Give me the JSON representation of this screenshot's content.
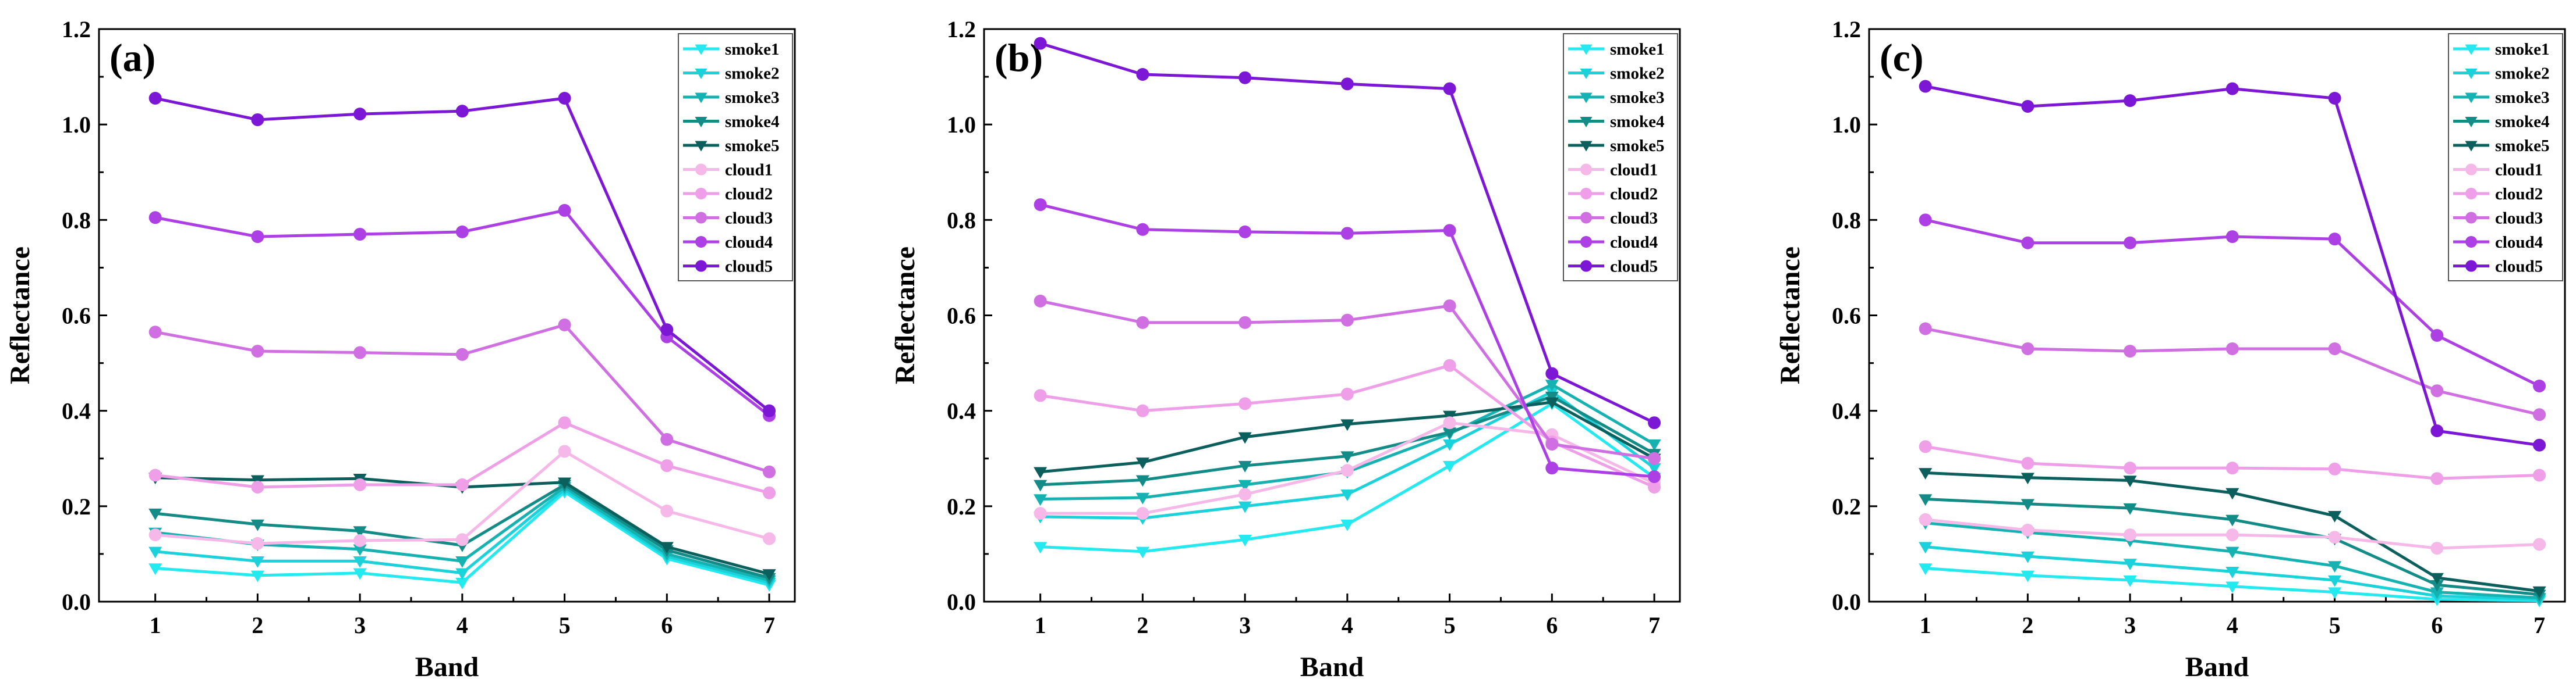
{
  "figure": {
    "colors": {
      "smoke1": "#24eaf0",
      "smoke2": "#1cd2da",
      "smoke3": "#16b2b2",
      "smoke4": "#138b86",
      "smoke5": "#0b605e",
      "cloud1": "#f6b8e8",
      "cloud2": "#ef9fe8",
      "cloud3": "#cf6fe2",
      "cloud4": "#ad40e4",
      "cloud5": "#7d17d6"
    }
  },
  "chart_data": [
    {
      "type": "line",
      "panel_label": "(a)",
      "xlabel": "Band",
      "ylabel": "Reflectance",
      "x": [
        1,
        2,
        3,
        4,
        5,
        6,
        7
      ],
      "x_tick_labels": [
        "1",
        "2",
        "3",
        "4",
        "5",
        "6",
        "7"
      ],
      "ylim": [
        0.0,
        1.2
      ],
      "y_ticks": [
        0.0,
        0.2,
        0.4,
        0.6,
        0.8,
        1.0,
        1.2
      ],
      "y_tick_labels": [
        "0.0",
        "0.2",
        "0.4",
        "0.6",
        "0.8",
        "1.0",
        "1.2"
      ],
      "legend_position": "top-right",
      "series": [
        {
          "name": "smoke1",
          "marker": "triangle-down",
          "values": [
            0.07,
            0.055,
            0.06,
            0.04,
            0.23,
            0.09,
            0.035
          ]
        },
        {
          "name": "smoke2",
          "marker": "triangle-down",
          "values": [
            0.105,
            0.085,
            0.085,
            0.06,
            0.235,
            0.095,
            0.04
          ]
        },
        {
          "name": "smoke3",
          "marker": "triangle-down",
          "values": [
            0.145,
            0.12,
            0.11,
            0.085,
            0.24,
            0.1,
            0.045
          ]
        },
        {
          "name": "smoke4",
          "marker": "triangle-down",
          "values": [
            0.185,
            0.162,
            0.148,
            0.118,
            0.245,
            0.108,
            0.05
          ]
        },
        {
          "name": "smoke5",
          "marker": "triangle-down",
          "values": [
            0.26,
            0.255,
            0.258,
            0.24,
            0.25,
            0.115,
            0.058
          ]
        },
        {
          "name": "cloud1",
          "marker": "circle",
          "values": [
            0.14,
            0.122,
            0.128,
            0.13,
            0.315,
            0.19,
            0.132
          ]
        },
        {
          "name": "cloud2",
          "marker": "circle",
          "values": [
            0.265,
            0.24,
            0.245,
            0.245,
            0.375,
            0.285,
            0.228
          ]
        },
        {
          "name": "cloud3",
          "marker": "circle",
          "values": [
            0.565,
            0.525,
            0.522,
            0.518,
            0.58,
            0.34,
            0.272
          ]
        },
        {
          "name": "cloud4",
          "marker": "circle",
          "values": [
            0.805,
            0.765,
            0.77,
            0.775,
            0.82,
            0.555,
            0.39
          ]
        },
        {
          "name": "cloud5",
          "marker": "circle",
          "values": [
            1.055,
            1.01,
            1.022,
            1.028,
            1.055,
            0.57,
            0.4
          ]
        }
      ]
    },
    {
      "type": "line",
      "panel_label": "(b)",
      "xlabel": "Band",
      "ylabel": "Reflectance",
      "x": [
        1,
        2,
        3,
        4,
        5,
        6,
        7
      ],
      "x_tick_labels": [
        "1",
        "2",
        "3",
        "4",
        "5",
        "6",
        "7"
      ],
      "ylim": [
        0.0,
        1.2
      ],
      "y_ticks": [
        0.0,
        0.2,
        0.4,
        0.6,
        0.8,
        1.0,
        1.2
      ],
      "y_tick_labels": [
        "0.0",
        "0.2",
        "0.4",
        "0.6",
        "0.8",
        "1.0",
        "1.2"
      ],
      "legend_position": "top-right",
      "series": [
        {
          "name": "smoke1",
          "marker": "triangle-down",
          "values": [
            0.115,
            0.105,
            0.13,
            0.162,
            0.285,
            0.415,
            0.26
          ]
        },
        {
          "name": "smoke2",
          "marker": "triangle-down",
          "values": [
            0.178,
            0.175,
            0.2,
            0.225,
            0.33,
            0.44,
            0.28
          ]
        },
        {
          "name": "smoke3",
          "marker": "triangle-down",
          "values": [
            0.215,
            0.218,
            0.245,
            0.272,
            0.352,
            0.455,
            0.33
          ]
        },
        {
          "name": "smoke4",
          "marker": "triangle-down",
          "values": [
            0.245,
            0.255,
            0.285,
            0.305,
            0.355,
            0.43,
            0.31
          ]
        },
        {
          "name": "smoke5",
          "marker": "triangle-down",
          "values": [
            0.272,
            0.292,
            0.345,
            0.372,
            0.39,
            0.418,
            0.3
          ]
        },
        {
          "name": "cloud1",
          "marker": "circle",
          "values": [
            0.185,
            0.185,
            0.225,
            0.275,
            0.375,
            0.35,
            0.248
          ]
        },
        {
          "name": "cloud2",
          "marker": "circle",
          "values": [
            0.432,
            0.4,
            0.415,
            0.435,
            0.495,
            0.335,
            0.24
          ]
        },
        {
          "name": "cloud3",
          "marker": "circle",
          "values": [
            0.63,
            0.585,
            0.585,
            0.59,
            0.62,
            0.33,
            0.3
          ]
        },
        {
          "name": "cloud4",
          "marker": "circle",
          "values": [
            0.832,
            0.78,
            0.775,
            0.772,
            0.778,
            0.28,
            0.262
          ]
        },
        {
          "name": "cloud5",
          "marker": "circle",
          "values": [
            1.17,
            1.105,
            1.098,
            1.085,
            1.075,
            0.478,
            0.375
          ]
        }
      ]
    },
    {
      "type": "line",
      "panel_label": "(c)",
      "xlabel": "Band",
      "ylabel": "Reflectance",
      "x": [
        1,
        2,
        3,
        4,
        5,
        6,
        7
      ],
      "x_tick_labels": [
        "1",
        "2",
        "3",
        "4",
        "5",
        "6",
        "7"
      ],
      "ylim": [
        0.0,
        1.2
      ],
      "y_ticks": [
        0.0,
        0.2,
        0.4,
        0.6,
        0.8,
        1.0,
        1.2
      ],
      "y_tick_labels": [
        "0.0",
        "0.2",
        "0.4",
        "0.6",
        "0.8",
        "1.0",
        "1.2"
      ],
      "legend_position": "top-right",
      "series": [
        {
          "name": "smoke1",
          "marker": "triangle-down",
          "values": [
            0.07,
            0.055,
            0.045,
            0.032,
            0.02,
            0.005,
            0.002
          ]
        },
        {
          "name": "smoke2",
          "marker": "triangle-down",
          "values": [
            0.115,
            0.095,
            0.08,
            0.063,
            0.045,
            0.012,
            0.005
          ]
        },
        {
          "name": "smoke3",
          "marker": "triangle-down",
          "values": [
            0.165,
            0.145,
            0.128,
            0.105,
            0.075,
            0.02,
            0.008
          ]
        },
        {
          "name": "smoke4",
          "marker": "triangle-down",
          "values": [
            0.215,
            0.205,
            0.196,
            0.172,
            0.132,
            0.035,
            0.015
          ]
        },
        {
          "name": "smoke5",
          "marker": "triangle-down",
          "values": [
            0.27,
            0.26,
            0.254,
            0.228,
            0.18,
            0.05,
            0.022
          ]
        },
        {
          "name": "cloud1",
          "marker": "circle",
          "values": [
            0.172,
            0.15,
            0.14,
            0.14,
            0.135,
            0.112,
            0.12
          ]
        },
        {
          "name": "cloud2",
          "marker": "circle",
          "values": [
            0.325,
            0.29,
            0.28,
            0.28,
            0.278,
            0.258,
            0.265
          ]
        },
        {
          "name": "cloud3",
          "marker": "circle",
          "values": [
            0.572,
            0.53,
            0.525,
            0.53,
            0.53,
            0.442,
            0.392
          ]
        },
        {
          "name": "cloud4",
          "marker": "circle",
          "values": [
            0.8,
            0.752,
            0.752,
            0.765,
            0.76,
            0.558,
            0.452
          ]
        },
        {
          "name": "cloud5",
          "marker": "circle",
          "values": [
            1.08,
            1.038,
            1.05,
            1.075,
            1.055,
            0.358,
            0.328
          ]
        }
      ]
    }
  ]
}
